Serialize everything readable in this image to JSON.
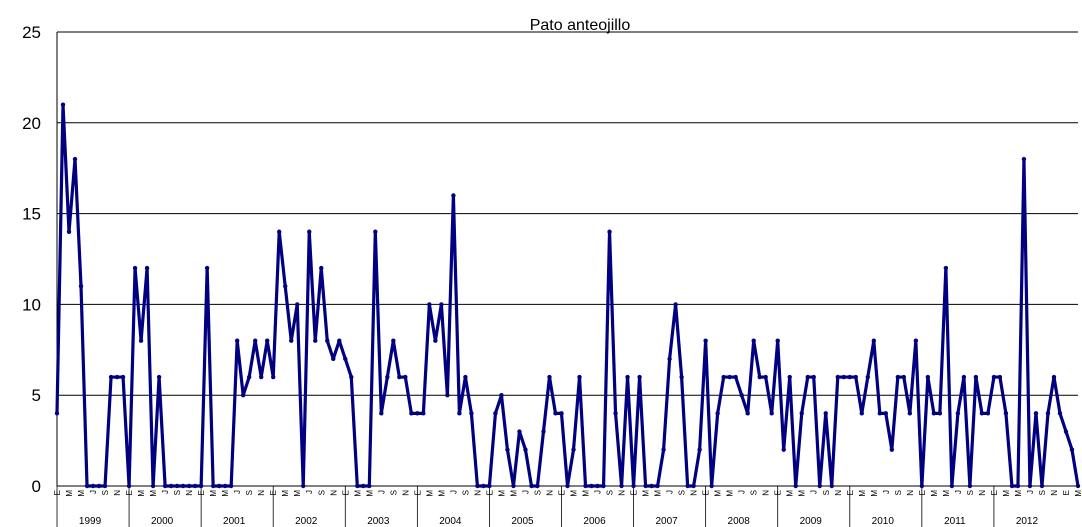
{
  "chart_data": {
    "type": "line",
    "title": "Pato anteojillo",
    "xlabel": "",
    "ylabel": "",
    "ylim": [
      0,
      25
    ],
    "yticks": [
      "0",
      "5",
      "10",
      "15",
      "20",
      "25"
    ],
    "grid": "horizontal",
    "legend": "none",
    "color": "#000080",
    "month_labels": [
      "E",
      "M",
      "M",
      "J",
      "S",
      "N"
    ],
    "years": [
      "1999",
      "2000",
      "2001",
      "2002",
      "2003",
      "2004",
      "2005",
      "2006",
      "2007",
      "2008",
      "2009",
      "2010",
      "2011",
      "2012"
    ],
    "values": [
      4,
      21,
      14,
      18,
      11,
      0,
      0,
      0,
      0,
      6,
      6,
      6,
      0,
      12,
      8,
      12,
      0,
      6,
      0,
      0,
      0,
      0,
      0,
      0,
      0,
      12,
      0,
      0,
      0,
      0,
      8,
      5,
      6,
      8,
      6,
      8,
      6,
      14,
      11,
      8,
      10,
      0,
      14,
      8,
      12,
      8,
      7,
      8,
      7,
      6,
      0,
      0,
      0,
      14,
      4,
      6,
      8,
      6,
      6,
      4,
      4,
      4,
      10,
      8,
      10,
      5,
      16,
      4,
      6,
      4,
      0,
      0,
      0,
      4,
      5,
      2,
      0,
      3,
      2,
      0,
      0,
      3,
      6,
      4,
      4,
      0,
      2,
      6,
      0,
      0,
      0,
      0,
      14,
      4,
      0,
      6,
      0,
      6,
      0,
      0,
      0,
      2,
      7,
      10,
      6,
      0,
      0,
      2,
      8,
      0,
      4,
      6,
      6,
      6,
      5,
      4,
      8,
      6,
      6,
      4,
      8,
      2,
      6,
      0,
      4,
      6,
      6,
      0,
      4,
      0,
      6,
      6,
      6,
      6,
      4,
      6,
      8,
      4,
      4,
      2,
      6,
      6,
      4,
      8,
      0,
      6,
      4,
      4,
      12,
      0,
      4,
      6,
      0,
      6,
      4,
      4,
      6,
      6,
      4,
      0,
      0,
      18,
      0,
      4,
      0,
      4,
      6,
      4,
      3,
      2,
      0
    ]
  }
}
